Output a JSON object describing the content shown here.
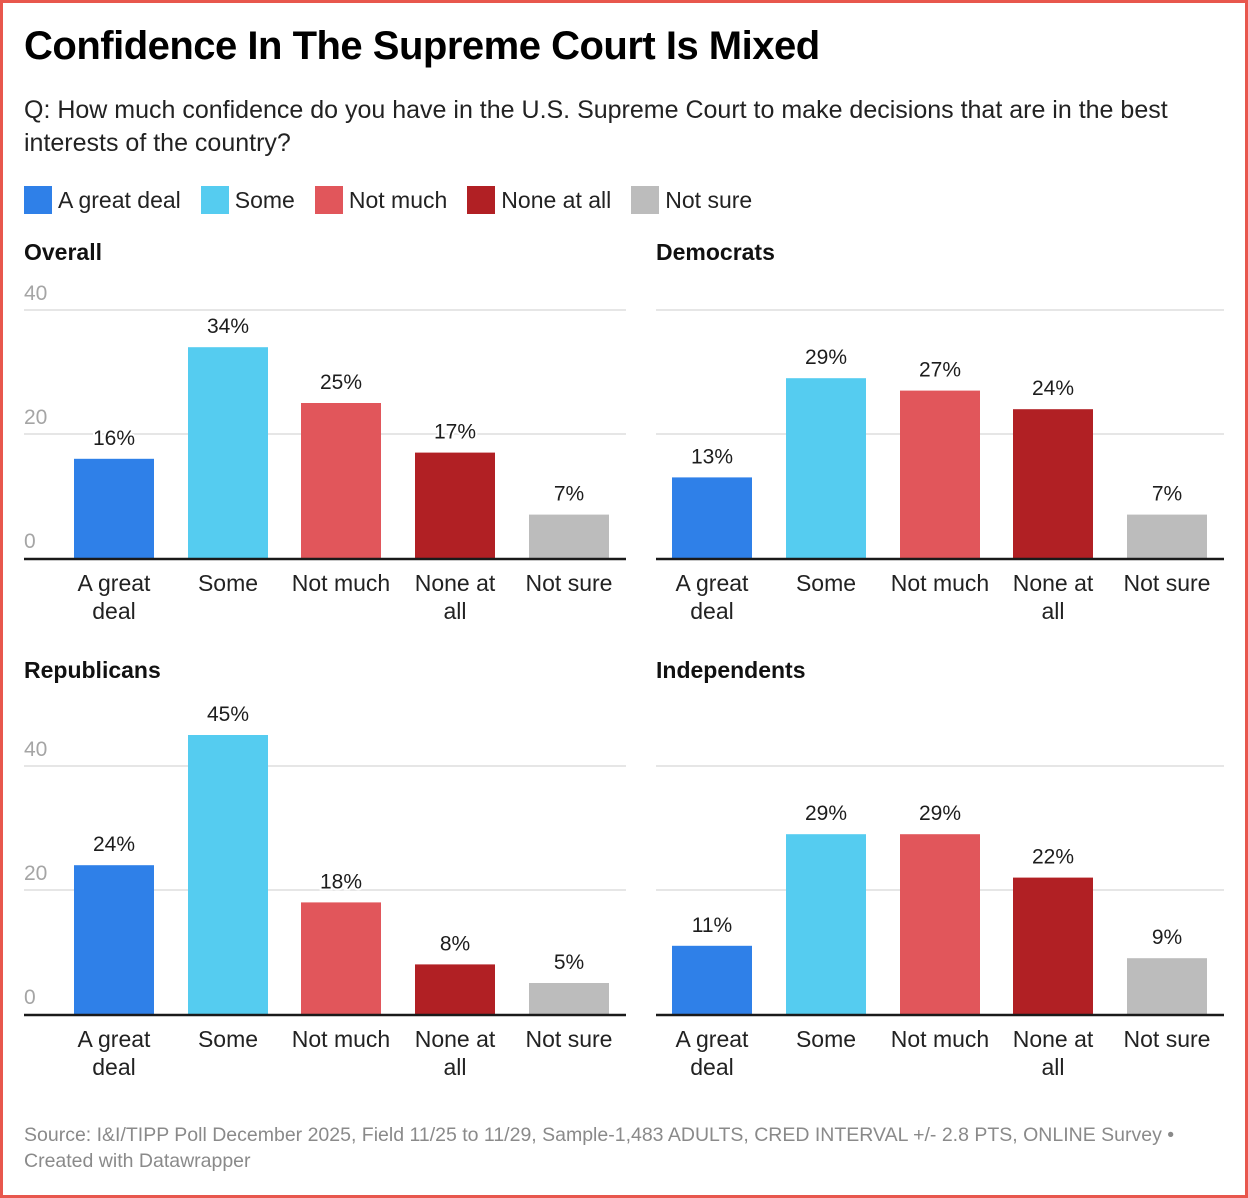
{
  "title": "Confidence In The Supreme Court Is Mixed",
  "subtitle": "Q: How much confidence do you have in the U.S. Supreme Court to make decisions that are in the best interests of the country?",
  "legend": [
    {
      "label": "A great deal",
      "color": "#2f80e8"
    },
    {
      "label": "Some",
      "color": "#55ccf0"
    },
    {
      "label": "Not much",
      "color": "#e1565b"
    },
    {
      "label": "None at all",
      "color": "#b12024"
    },
    {
      "label": "Not sure",
      "color": "#bcbcbc"
    }
  ],
  "source": "Source: I&I/TIPP Poll December 2025, Field 11/25 to 11/29, Sample-1,483 ADULTS, CRED INTERVAL +/- 2.8 PTS, ONLINE Survey • Created with Datawrapper",
  "chart_data": [
    {
      "type": "bar",
      "title": "Overall",
      "categories": [
        "A great deal",
        "Some",
        "Not much",
        "None at all",
        "Not sure"
      ],
      "category_lines": [
        [
          "A great",
          "deal"
        ],
        [
          "Some"
        ],
        [
          "Not much"
        ],
        [
          "None at",
          "all"
        ],
        [
          "Not sure"
        ]
      ],
      "values": [
        16,
        34,
        25,
        17,
        7
      ],
      "data_labels": [
        "16%",
        "34%",
        "25%",
        "17%",
        "7%"
      ],
      "colors": [
        "#2f80e8",
        "#55ccf0",
        "#e1565b",
        "#b12024",
        "#bcbcbc"
      ],
      "yticks": [
        0,
        20,
        40
      ],
      "ytick_labels_visible": true,
      "ylim": [
        0,
        40
      ],
      "grid": true,
      "xlabel": "",
      "ylabel": ""
    },
    {
      "type": "bar",
      "title": "Democrats",
      "categories": [
        "A great deal",
        "Some",
        "Not much",
        "None at all",
        "Not sure"
      ],
      "category_lines": [
        [
          "A great",
          "deal"
        ],
        [
          "Some"
        ],
        [
          "Not much"
        ],
        [
          "None at",
          "all"
        ],
        [
          "Not sure"
        ]
      ],
      "values": [
        13,
        29,
        27,
        24,
        7
      ],
      "data_labels": [
        "13%",
        "29%",
        "27%",
        "24%",
        "7%"
      ],
      "colors": [
        "#2f80e8",
        "#55ccf0",
        "#e1565b",
        "#b12024",
        "#bcbcbc"
      ],
      "yticks": [
        0,
        20,
        40
      ],
      "ytick_labels_visible": false,
      "ylim": [
        0,
        40
      ],
      "grid": true,
      "xlabel": "",
      "ylabel": ""
    },
    {
      "type": "bar",
      "title": "Republicans",
      "categories": [
        "A great deal",
        "Some",
        "Not much",
        "None at all",
        "Not sure"
      ],
      "category_lines": [
        [
          "A great",
          "deal"
        ],
        [
          "Some"
        ],
        [
          "Not much"
        ],
        [
          "None at",
          "all"
        ],
        [
          "Not sure"
        ]
      ],
      "values": [
        24,
        45,
        18,
        8,
        5
      ],
      "data_labels": [
        "24%",
        "45%",
        "18%",
        "8%",
        "5%"
      ],
      "colors": [
        "#2f80e8",
        "#55ccf0",
        "#e1565b",
        "#b12024",
        "#bcbcbc"
      ],
      "yticks": [
        0,
        20,
        40
      ],
      "ytick_labels_visible": true,
      "ylim": [
        0,
        40
      ],
      "grid": true,
      "xlabel": "",
      "ylabel": ""
    },
    {
      "type": "bar",
      "title": "Independents",
      "categories": [
        "A great deal",
        "Some",
        "Not much",
        "None at all",
        "Not sure"
      ],
      "category_lines": [
        [
          "A great",
          "deal"
        ],
        [
          "Some"
        ],
        [
          "Not much"
        ],
        [
          "None at",
          "all"
        ],
        [
          "Not sure"
        ]
      ],
      "values": [
        11,
        29,
        29,
        22,
        9
      ],
      "data_labels": [
        "11%",
        "29%",
        "29%",
        "22%",
        "9%"
      ],
      "colors": [
        "#2f80e8",
        "#55ccf0",
        "#e1565b",
        "#b12024",
        "#bcbcbc"
      ],
      "yticks": [
        0,
        20,
        40
      ],
      "ytick_labels_visible": false,
      "ylim": [
        0,
        40
      ],
      "grid": true,
      "xlabel": "",
      "ylabel": ""
    }
  ]
}
